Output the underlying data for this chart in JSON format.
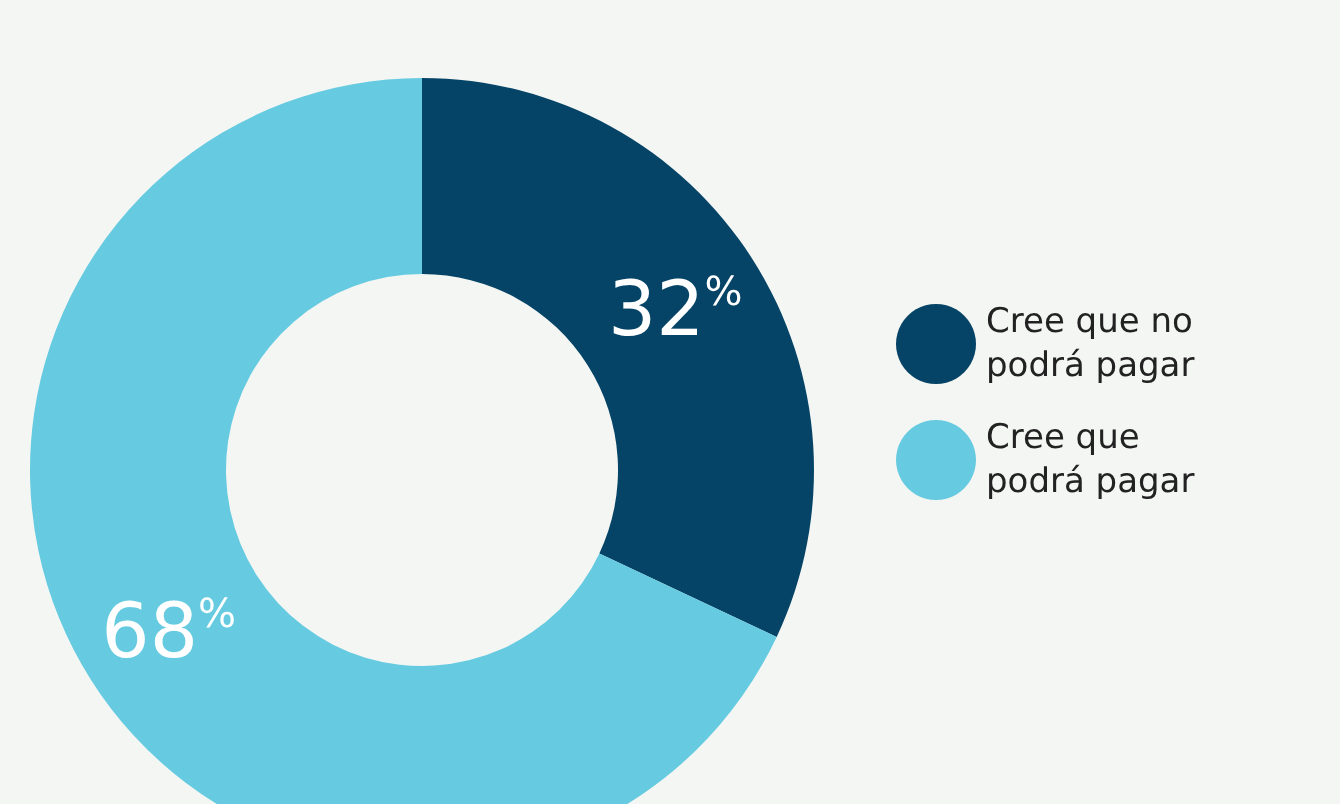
{
  "chart_data": {
    "type": "donut",
    "categories": [
      "Cree que no podrá pagar",
      "Cree que podrá pagar"
    ],
    "values": [
      32,
      68
    ],
    "colors": [
      "#054466",
      "#66cbe0"
    ],
    "value_labels": [
      "32$^{%}$",
      "68$^{%}$"
    ],
    "legend": "right"
  }
}
